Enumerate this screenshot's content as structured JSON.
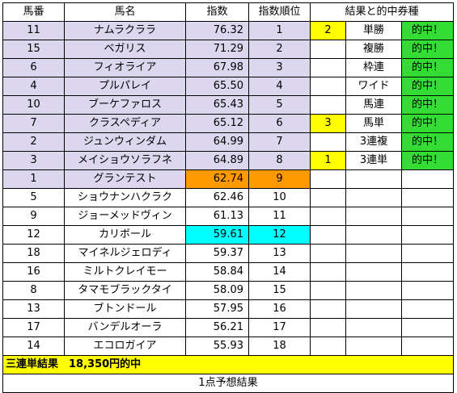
{
  "headers": [
    "馬番",
    "馬名",
    "指数",
    "指数順位",
    "結果と的中券種"
  ],
  "rows": [
    {
      "no": "11",
      "name": "ナムラクララ",
      "score": "76.32",
      "rank": "1",
      "result": "2",
      "ticket": "単勝",
      "hit": "的中！"
    },
    {
      "no": "15",
      "name": "ベガリス",
      "score": "71.29",
      "rank": "2",
      "result": "",
      "ticket": "複勝",
      "hit": "的中！"
    },
    {
      "no": "6",
      "name": "フィオライア",
      "score": "67.98",
      "rank": "3",
      "result": "",
      "ticket": "枠連",
      "hit": "的中！"
    },
    {
      "no": "4",
      "name": "プルパレイ",
      "score": "65.50",
      "rank": "4",
      "result": "",
      "ticket": "ワイド",
      "hit": "的中！"
    },
    {
      "no": "10",
      "name": "ブーケファロス",
      "score": "65.43",
      "rank": "5",
      "result": "",
      "ticket": "馬連",
      "hit": "的中！"
    },
    {
      "no": "7",
      "name": "クラスペディア",
      "score": "65.12",
      "rank": "6",
      "result": "3",
      "ticket": "馬単",
      "hit": "的中！"
    },
    {
      "no": "2",
      "name": "ジュンウィンダム",
      "score": "64.99",
      "rank": "7",
      "result": "",
      "ticket": "3連複",
      "hit": "的中！"
    },
    {
      "no": "3",
      "name": "メイショウソラフネ",
      "score": "64.89",
      "rank": "8",
      "result": "1",
      "ticket": "3連単",
      "hit": "的中！"
    },
    {
      "no": "1",
      "name": "グランテスト",
      "score": "62.74",
      "rank": "9",
      "result": "",
      "ticket": "",
      "hit": ""
    },
    {
      "no": "5",
      "name": "ショウナンハクラク",
      "score": "62.46",
      "rank": "10",
      "result": "",
      "ticket": "",
      "hit": ""
    },
    {
      "no": "9",
      "name": "ジョーメッドヴィン",
      "score": "61.13",
      "rank": "11",
      "result": "",
      "ticket": "",
      "hit": ""
    },
    {
      "no": "12",
      "name": "カリボール",
      "score": "59.61",
      "rank": "12",
      "result": "",
      "ticket": "",
      "hit": ""
    },
    {
      "no": "18",
      "name": "マイネルジェロディ",
      "score": "59.37",
      "rank": "13",
      "result": "",
      "ticket": "",
      "hit": ""
    },
    {
      "no": "16",
      "name": "ミルトクレイモー",
      "score": "58.84",
      "rank": "14",
      "result": "",
      "ticket": "",
      "hit": ""
    },
    {
      "no": "8",
      "name": "タマモブラックタイ",
      "score": "58.09",
      "rank": "15",
      "result": "",
      "ticket": "",
      "hit": ""
    },
    {
      "no": "13",
      "name": "ブトンドール",
      "score": "57.95",
      "rank": "16",
      "result": "",
      "ticket": "",
      "hit": ""
    },
    {
      "no": "17",
      "name": "バンデルオーラ",
      "score": "56.21",
      "rank": "17",
      "result": "",
      "ticket": "",
      "hit": ""
    },
    {
      "no": "14",
      "name": "エコロガイア",
      "score": "55.93",
      "rank": "18",
      "result": "",
      "ticket": "",
      "hit": ""
    }
  ],
  "highlights": {
    "lavender_rows": 9,
    "orange_row_rank": "9",
    "cyan_row_rank": "12",
    "colors": {
      "lavender": "#dcd7ee",
      "yellow": "#ffff00",
      "green": "#33dd33",
      "orange": "#ff9900",
      "cyan": "#00ffff"
    }
  },
  "result_summary": "三連単結果　18,350円的中",
  "footer": "1点予想結果"
}
